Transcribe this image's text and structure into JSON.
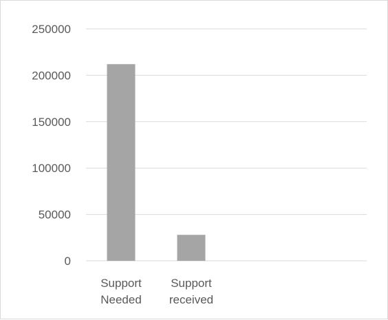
{
  "chart_data": {
    "type": "bar",
    "categories": [
      [
        "Support",
        "Needed"
      ],
      [
        "Support",
        "received"
      ],
      [],
      []
    ],
    "values": [
      212000,
      28000,
      null,
      null
    ],
    "yticks": [
      0,
      50000,
      100000,
      150000,
      200000,
      250000
    ],
    "ylim": [
      0,
      250000
    ],
    "grid": true,
    "colors": {
      "bar": "#a5a5a5",
      "grid": "#d9d9d9",
      "text": "#595959"
    }
  }
}
